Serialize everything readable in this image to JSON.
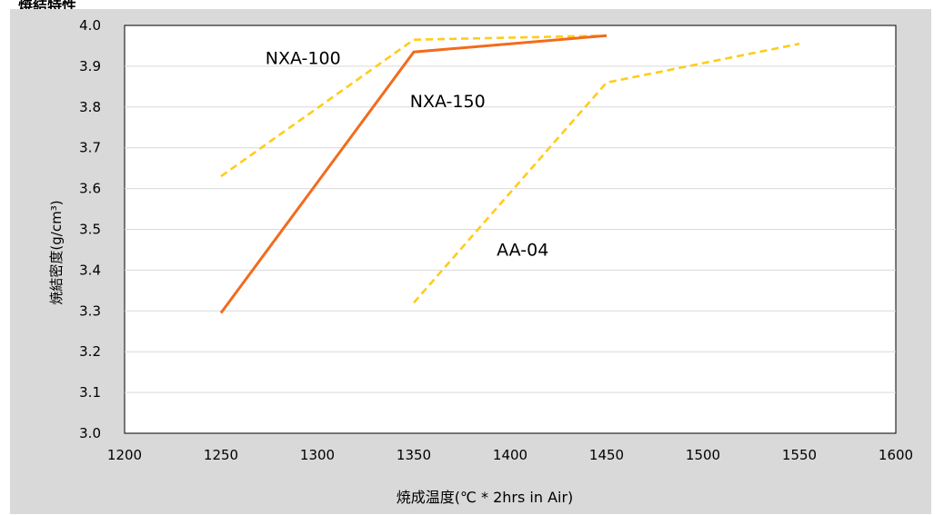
{
  "page_title": "焼結特性",
  "colors": {
    "frame_bg": "#d9d9d9",
    "plot_bg": "#ffffff",
    "grid": "#d9d9d9",
    "solid_line": "#f26b1d",
    "dashed_line": "#ffcc1a"
  },
  "chart_data": {
    "type": "line",
    "title": "",
    "xlabel": "焼成温度(℃ * 2hrs in Air)",
    "ylabel": "焼結密度(g/cm³)",
    "xlim": [
      1200,
      1600
    ],
    "ylim": [
      3.0,
      4.0
    ],
    "x_ticks": [
      "1200",
      "1250",
      "1300",
      "1350",
      "1400",
      "1450",
      "1500",
      "1550",
      "1600"
    ],
    "y_ticks": [
      "3.0",
      "3.1",
      "3.2",
      "3.3",
      "3.4",
      "3.5",
      "3.6",
      "3.7",
      "3.8",
      "3.9",
      "4.0"
    ],
    "grid": true,
    "legend": "none",
    "series": [
      {
        "name": "NXA-100",
        "style": "dashed",
        "color": "#ffcc1a",
        "points": [
          [
            1250,
            3.63
          ],
          [
            1350,
            3.965
          ],
          [
            1450,
            3.975
          ]
        ]
      },
      {
        "name": "NXA-150",
        "style": "solid",
        "color": "#f26b1d",
        "points": [
          [
            1250,
            3.295
          ],
          [
            1350,
            3.935
          ],
          [
            1450,
            3.975
          ]
        ]
      },
      {
        "name": "AA-04",
        "style": "dashed",
        "color": "#ffcc1a",
        "points": [
          [
            1350,
            3.32
          ],
          [
            1450,
            3.86
          ],
          [
            1550,
            3.955
          ]
        ]
      }
    ]
  }
}
